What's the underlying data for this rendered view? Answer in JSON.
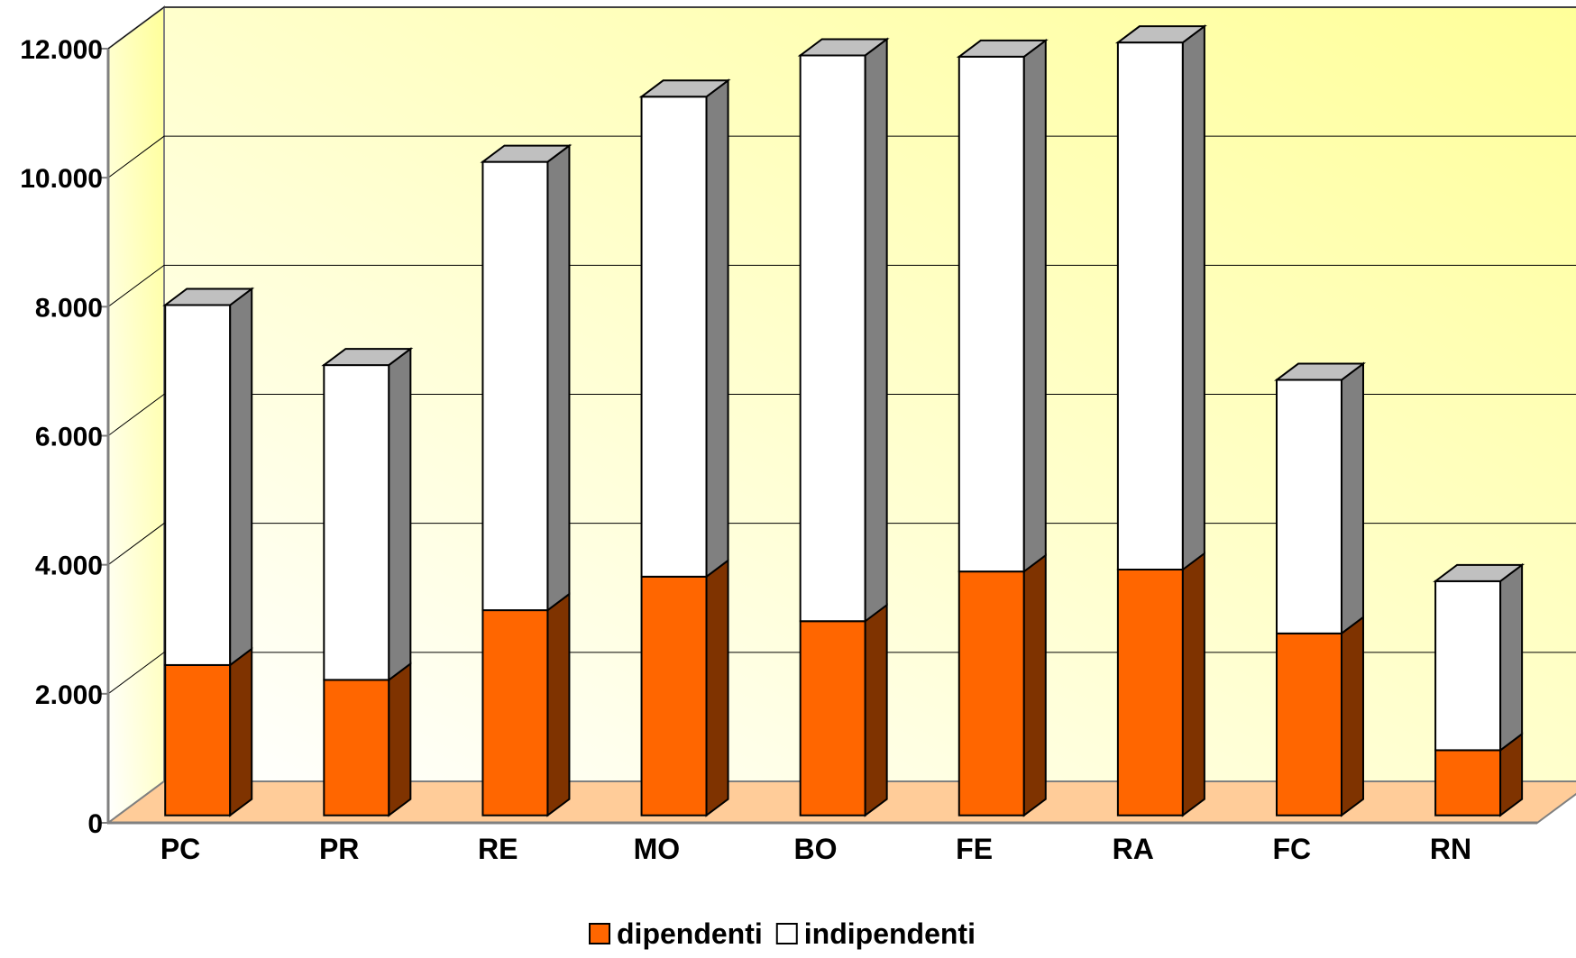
{
  "chart_data": {
    "type": "bar",
    "stacked": true,
    "three_d": true,
    "title": "",
    "xlabel": "",
    "ylabel": "",
    "categories": [
      "PC",
      "PR",
      "RE",
      "MO",
      "BO",
      "FE",
      "RA",
      "FC",
      "RN"
    ],
    "series": [
      {
        "name": "dipendenti",
        "values": [
          2330,
          2100,
          3180,
          3700,
          3010,
          3780,
          3810,
          2820,
          1010
        ],
        "color": "#FF6600",
        "side_color": "#7F3300"
      },
      {
        "name": "indipendenti",
        "values": [
          5580,
          4880,
          6950,
          7440,
          8770,
          7980,
          8170,
          3930,
          2620
        ],
        "color": "#FFFFFF",
        "side_color": "#808080"
      }
    ],
    "ylim": [
      0,
      12000
    ],
    "yticks": [
      0,
      2000,
      4000,
      6000,
      8000,
      10000,
      12000
    ],
    "ytick_labels": [
      "0",
      "2.000",
      "4.000",
      "6.000",
      "8.000",
      "10.000",
      "12.000"
    ],
    "grid": true,
    "legend": "bottom",
    "colors": {
      "wall_gradient_start": "#FFFFFF",
      "wall_gradient_end": "#FFFF99",
      "floor": "#FFCC99",
      "top_face": "#C0C0C0",
      "axis": "#808080",
      "grid": "#000000"
    }
  }
}
